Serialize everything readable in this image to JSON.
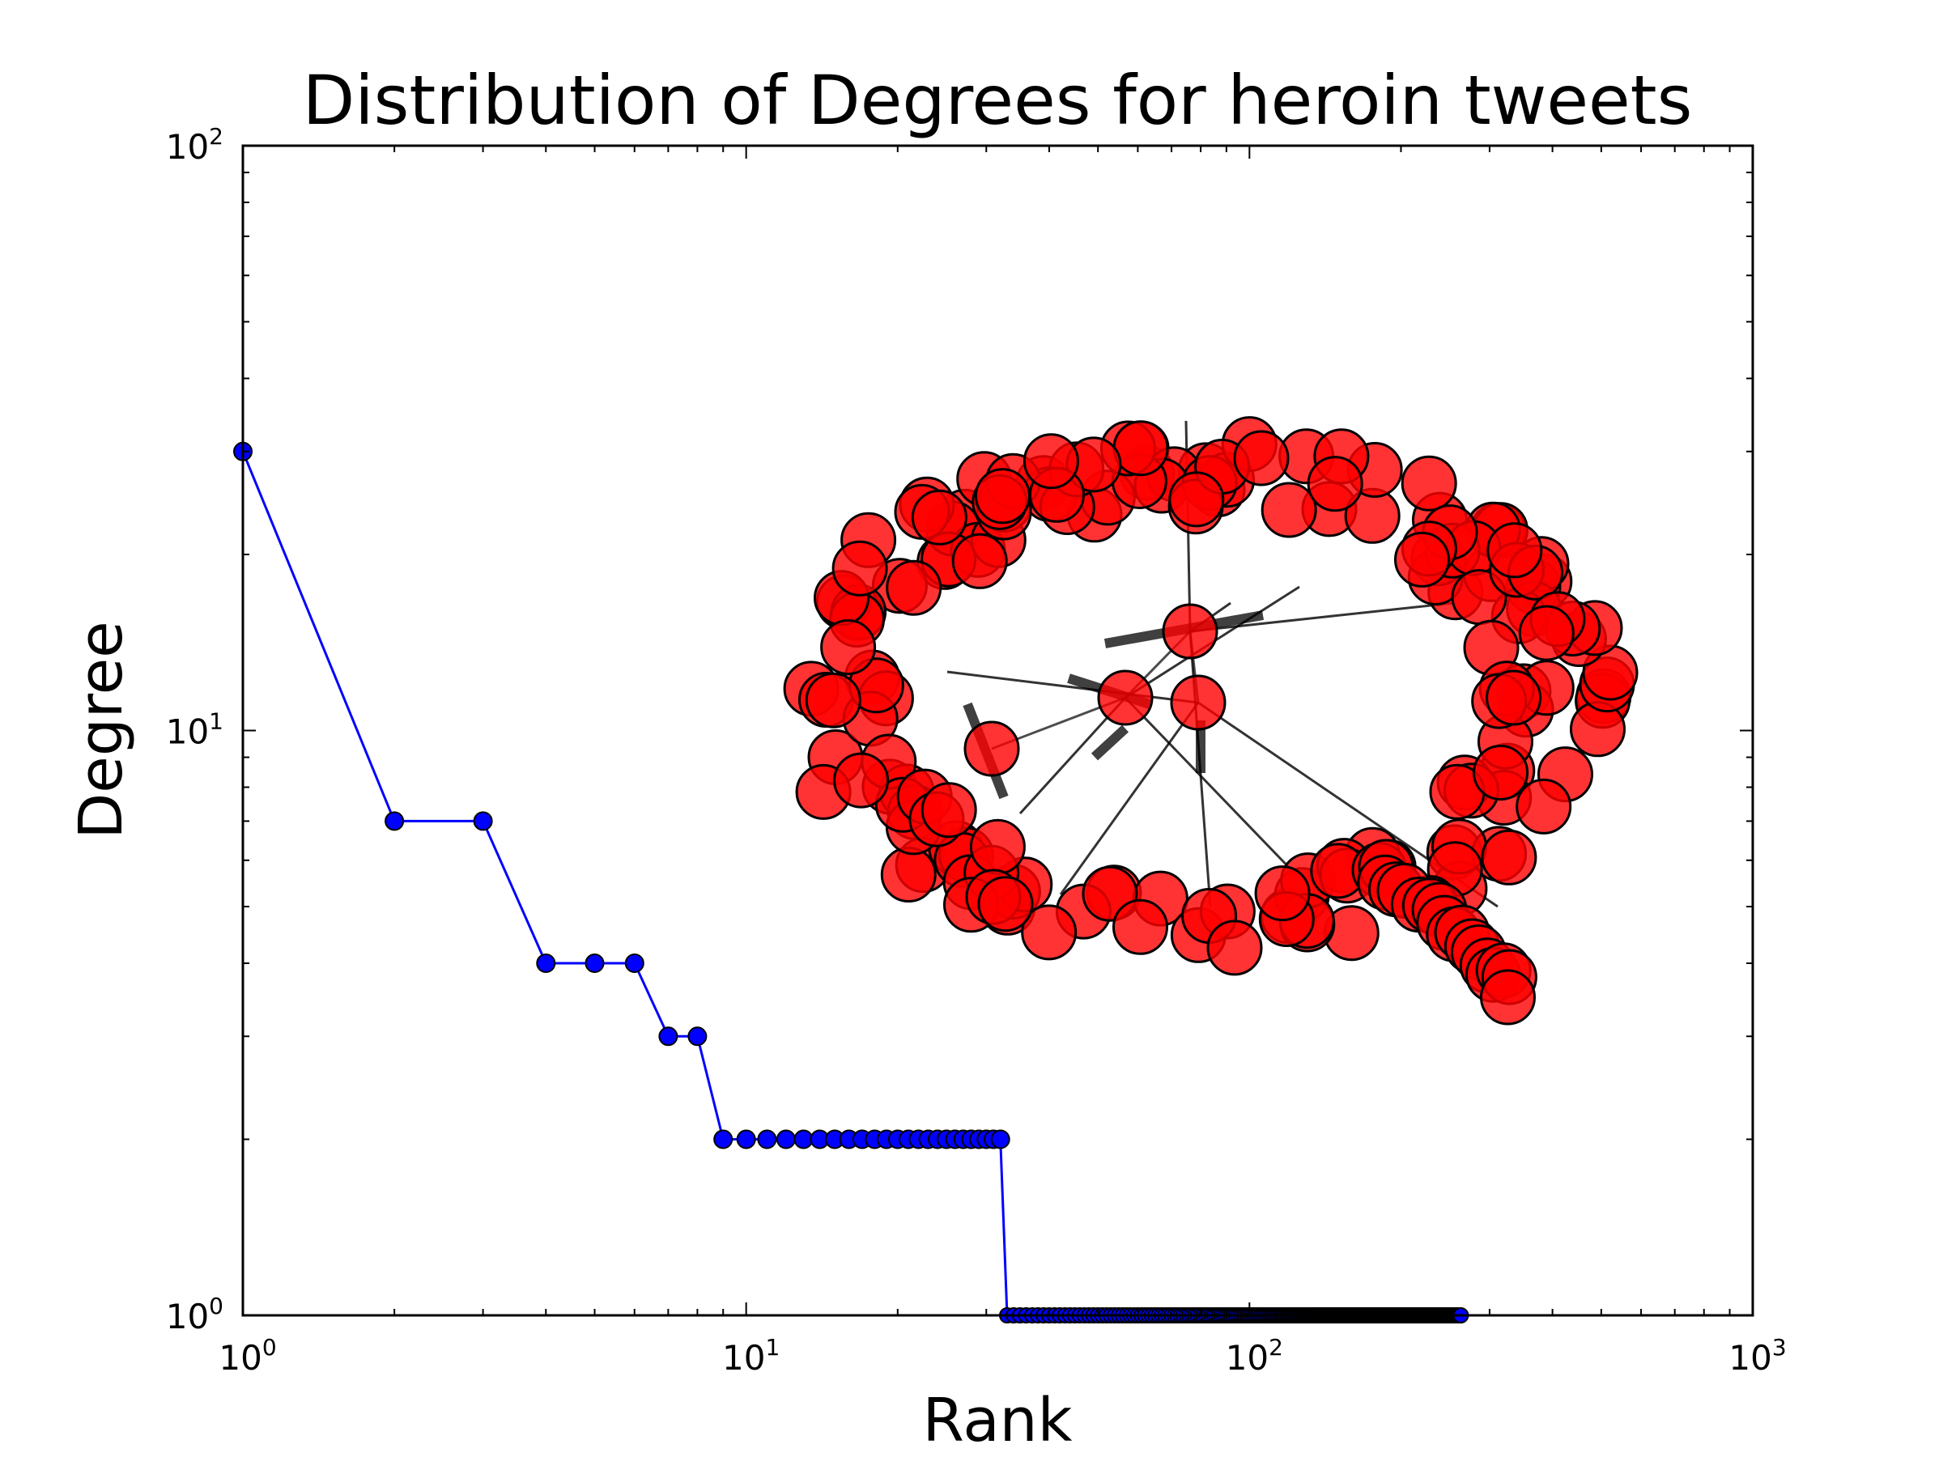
{
  "chart_data": {
    "type": "line",
    "title": "Distribution of Degrees for heroin tweets",
    "xlabel": "Rank",
    "ylabel": "Degree",
    "xscale": "log",
    "yscale": "log",
    "xlim": [
      1,
      1000
    ],
    "ylim": [
      1,
      100
    ],
    "grid": false,
    "x_ticks": [
      {
        "base": "10",
        "exp": "0",
        "value": 1
      },
      {
        "base": "10",
        "exp": "1",
        "value": 10
      },
      {
        "base": "10",
        "exp": "2",
        "value": 100
      },
      {
        "base": "10",
        "exp": "3",
        "value": 1000
      }
    ],
    "y_ticks": [
      {
        "base": "10",
        "exp": "0",
        "value": 1
      },
      {
        "base": "10",
        "exp": "1",
        "value": 10
      },
      {
        "base": "10",
        "exp": "2",
        "value": 100
      }
    ],
    "series": [
      {
        "line_color": "#0000ff",
        "marker_color": "#0000ff",
        "marker": "circle",
        "points": [
          [
            1,
            30
          ],
          [
            2,
            7
          ],
          [
            3,
            7
          ],
          [
            4,
            4
          ],
          [
            5,
            4
          ],
          [
            6,
            4
          ],
          [
            7,
            3
          ],
          [
            8,
            3
          ],
          [
            9,
            2
          ],
          [
            10,
            2
          ],
          [
            11,
            2
          ],
          [
            12,
            2
          ],
          [
            13,
            2
          ],
          [
            14,
            2
          ],
          [
            15,
            2
          ],
          [
            16,
            2
          ],
          [
            17,
            2
          ],
          [
            18,
            2
          ],
          [
            19,
            2
          ],
          [
            20,
            2
          ],
          [
            21,
            2
          ],
          [
            22,
            2
          ],
          [
            23,
            2
          ],
          [
            24,
            2
          ],
          [
            25,
            2
          ],
          [
            26,
            2
          ],
          [
            27,
            2
          ],
          [
            28,
            2
          ],
          [
            29,
            2
          ],
          [
            30,
            2
          ],
          [
            31,
            2
          ],
          [
            32,
            2
          ],
          [
            33,
            1
          ],
          [
            40,
            1
          ],
          [
            50,
            1
          ],
          [
            60,
            1
          ],
          [
            70,
            1
          ],
          [
            80,
            1
          ],
          [
            90,
            1
          ],
          [
            100,
            1
          ],
          [
            120,
            1
          ],
          [
            150,
            1
          ],
          [
            180,
            1
          ],
          [
            210,
            1
          ],
          [
            240,
            1
          ],
          [
            263,
            1
          ]
        ],
        "dense_tail_from": 33,
        "dense_tail_to": 263
      }
    ],
    "inset_network": {
      "node_color": "#ff0000",
      "node_opacity": 0.8,
      "edge_color": "#000000",
      "hub_nodes": 4
    }
  }
}
